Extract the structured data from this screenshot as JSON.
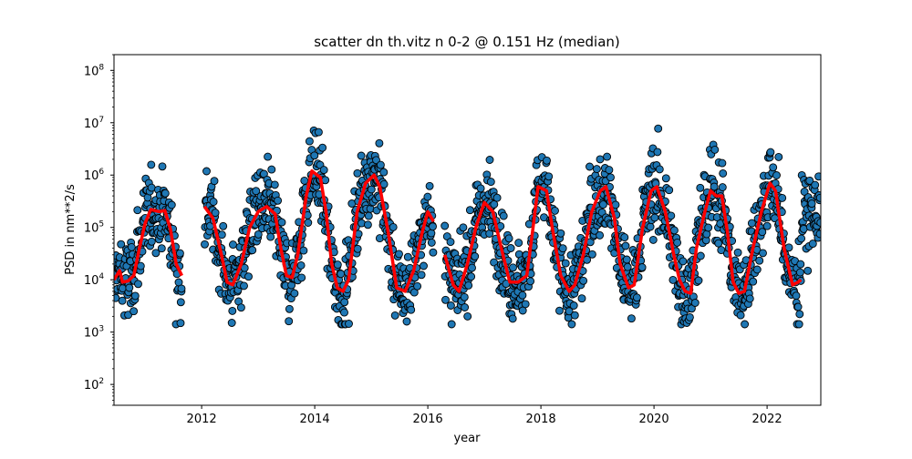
{
  "chart_data": {
    "type": "scatter",
    "title": "scatter dn th.vitz n 0-2 @ 0.151 Hz (median)",
    "xlabel": "year",
    "ylabel": "PSD in nm**2/s",
    "yscale": "log",
    "xlim": [
      2010.45,
      2022.95
    ],
    "ylim": [
      40,
      200000000
    ],
    "xticks": [
      2012,
      2014,
      2016,
      2018,
      2020,
      2022
    ],
    "xtick_labels": [
      "2012",
      "2014",
      "2016",
      "2018",
      "2020",
      "2022"
    ],
    "yticks": [
      100,
      1000,
      10000,
      100000,
      1000000,
      10000000,
      100000000
    ],
    "ytick_labels": [
      {
        "base": "10",
        "exp": "2"
      },
      {
        "base": "10",
        "exp": "3"
      },
      {
        "base": "10",
        "exp": "4"
      },
      {
        "base": "10",
        "exp": "5"
      },
      {
        "base": "10",
        "exp": "6"
      },
      {
        "base": "10",
        "exp": "7"
      },
      {
        "base": "10",
        "exp": "8"
      }
    ],
    "grid": false,
    "colors": {
      "points": "#1f77b4",
      "point_edge": "#000000",
      "median": "#ff0000"
    },
    "series": [
      {
        "type": "line",
        "values": [
          [
            2010.45,
            10000
          ],
          [
            2010.55,
            15000
          ],
          [
            2010.6,
            9000
          ],
          [
            2010.7,
            9500
          ],
          [
            2010.8,
            12000
          ],
          [
            2010.9,
            40000
          ],
          [
            2011.0,
            120000
          ],
          [
            2011.1,
            220000
          ],
          [
            2011.25,
            200000
          ],
          [
            2011.35,
            210000
          ],
          [
            2011.45,
            90000
          ],
          [
            2011.55,
            20000
          ],
          [
            2011.65,
            12000
          ],
          [
            2012.05,
            250000
          ],
          [
            2012.2,
            150000
          ],
          [
            2012.35,
            30000
          ],
          [
            2012.45,
            9000
          ],
          [
            2012.55,
            8000
          ],
          [
            2012.7,
            20000
          ],
          [
            2012.85,
            100000
          ],
          [
            2013.0,
            200000
          ],
          [
            2013.15,
            250000
          ],
          [
            2013.3,
            180000
          ],
          [
            2013.4,
            40000
          ],
          [
            2013.5,
            12000
          ],
          [
            2013.6,
            11000
          ],
          [
            2013.7,
            30000
          ],
          [
            2013.85,
            400000
          ],
          [
            2013.95,
            1200000
          ],
          [
            2014.1,
            900000
          ],
          [
            2014.2,
            200000
          ],
          [
            2014.3,
            20000
          ],
          [
            2014.4,
            7000
          ],
          [
            2014.5,
            6000
          ],
          [
            2014.6,
            10000
          ],
          [
            2014.75,
            200000
          ],
          [
            2014.9,
            700000
          ],
          [
            2015.05,
            1000000
          ],
          [
            2015.15,
            600000
          ],
          [
            2015.3,
            80000
          ],
          [
            2015.45,
            7000
          ],
          [
            2015.6,
            6000
          ],
          [
            2015.75,
            15000
          ],
          [
            2015.9,
            80000
          ],
          [
            2016.0,
            200000
          ],
          [
            2016.1,
            130000
          ],
          [
            2016.3,
            30000
          ],
          [
            2016.45,
            8000
          ],
          [
            2016.55,
            6000
          ],
          [
            2016.7,
            20000
          ],
          [
            2016.85,
            100000
          ],
          [
            2017.0,
            300000
          ],
          [
            2017.15,
            200000
          ],
          [
            2017.3,
            40000
          ],
          [
            2017.45,
            9000
          ],
          [
            2017.6,
            9000
          ],
          [
            2017.75,
            12000
          ],
          [
            2017.85,
            80000
          ],
          [
            2017.95,
            600000
          ],
          [
            2018.1,
            500000
          ],
          [
            2018.2,
            100000
          ],
          [
            2018.35,
            12000
          ],
          [
            2018.5,
            6000
          ],
          [
            2018.6,
            8000
          ],
          [
            2018.75,
            30000
          ],
          [
            2018.9,
            200000
          ],
          [
            2019.05,
            500000
          ],
          [
            2019.15,
            600000
          ],
          [
            2019.3,
            150000
          ],
          [
            2019.4,
            20000
          ],
          [
            2019.55,
            7000
          ],
          [
            2019.65,
            8000
          ],
          [
            2019.8,
            100000
          ],
          [
            2019.95,
            500000
          ],
          [
            2020.05,
            600000
          ],
          [
            2020.2,
            200000
          ],
          [
            2020.35,
            30000
          ],
          [
            2020.45,
            10000
          ],
          [
            2020.55,
            6000
          ],
          [
            2020.65,
            5500
          ],
          [
            2020.75,
            40000
          ],
          [
            2020.9,
            200000
          ],
          [
            2021.0,
            500000
          ],
          [
            2021.1,
            400000
          ],
          [
            2021.2,
            400000
          ],
          [
            2021.3,
            80000
          ],
          [
            2021.4,
            9000
          ],
          [
            2021.5,
            5500
          ],
          [
            2021.6,
            6000
          ],
          [
            2021.75,
            40000
          ],
          [
            2021.9,
            200000
          ],
          [
            2022.05,
            700000
          ],
          [
            2022.15,
            500000
          ],
          [
            2022.3,
            40000
          ],
          [
            2022.45,
            8000
          ],
          [
            2022.55,
            9000
          ],
          [
            2022.6,
            10000
          ]
        ]
      }
    ]
  }
}
